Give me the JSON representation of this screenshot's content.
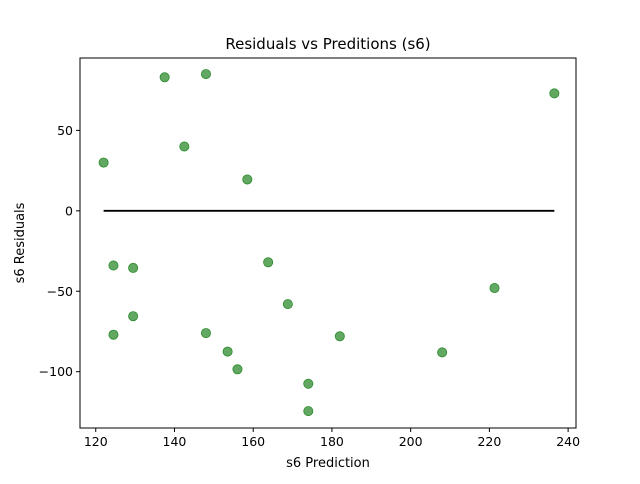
{
  "chart_data": {
    "type": "scatter",
    "title": "Residuals vs Preditions (s6)",
    "xlabel": "s6 Prediction",
    "ylabel": "s6 Residuals",
    "xlim": [
      116,
      242
    ],
    "ylim": [
      -135,
      95
    ],
    "xticks": [
      120,
      140,
      160,
      180,
      200,
      220,
      240
    ],
    "yticks": [
      -100,
      -50,
      0,
      50
    ],
    "ytick_labels": [
      "−100",
      "−50",
      "0",
      "50"
    ],
    "grid": false,
    "marker_color": "#2e8b2e",
    "zero_line": {
      "x_start": 122,
      "x_end": 236.5,
      "y": 0,
      "color": "#000000"
    },
    "points": [
      {
        "x": 122.0,
        "y": 30
      },
      {
        "x": 124.5,
        "y": -34
      },
      {
        "x": 124.5,
        "y": -77
      },
      {
        "x": 129.5,
        "y": -35.5
      },
      {
        "x": 129.5,
        "y": -65.5
      },
      {
        "x": 137.5,
        "y": 83
      },
      {
        "x": 142.5,
        "y": 40
      },
      {
        "x": 148.0,
        "y": 85
      },
      {
        "x": 148.0,
        "y": -76
      },
      {
        "x": 153.5,
        "y": -87.5
      },
      {
        "x": 156.0,
        "y": -98.5
      },
      {
        "x": 158.5,
        "y": 19.5
      },
      {
        "x": 163.8,
        "y": -32
      },
      {
        "x": 168.8,
        "y": -58
      },
      {
        "x": 174.0,
        "y": -107.5
      },
      {
        "x": 174.0,
        "y": -124.5
      },
      {
        "x": 182.0,
        "y": -78
      },
      {
        "x": 208.0,
        "y": -88
      },
      {
        "x": 221.3,
        "y": -48
      },
      {
        "x": 236.5,
        "y": 73
      }
    ]
  }
}
